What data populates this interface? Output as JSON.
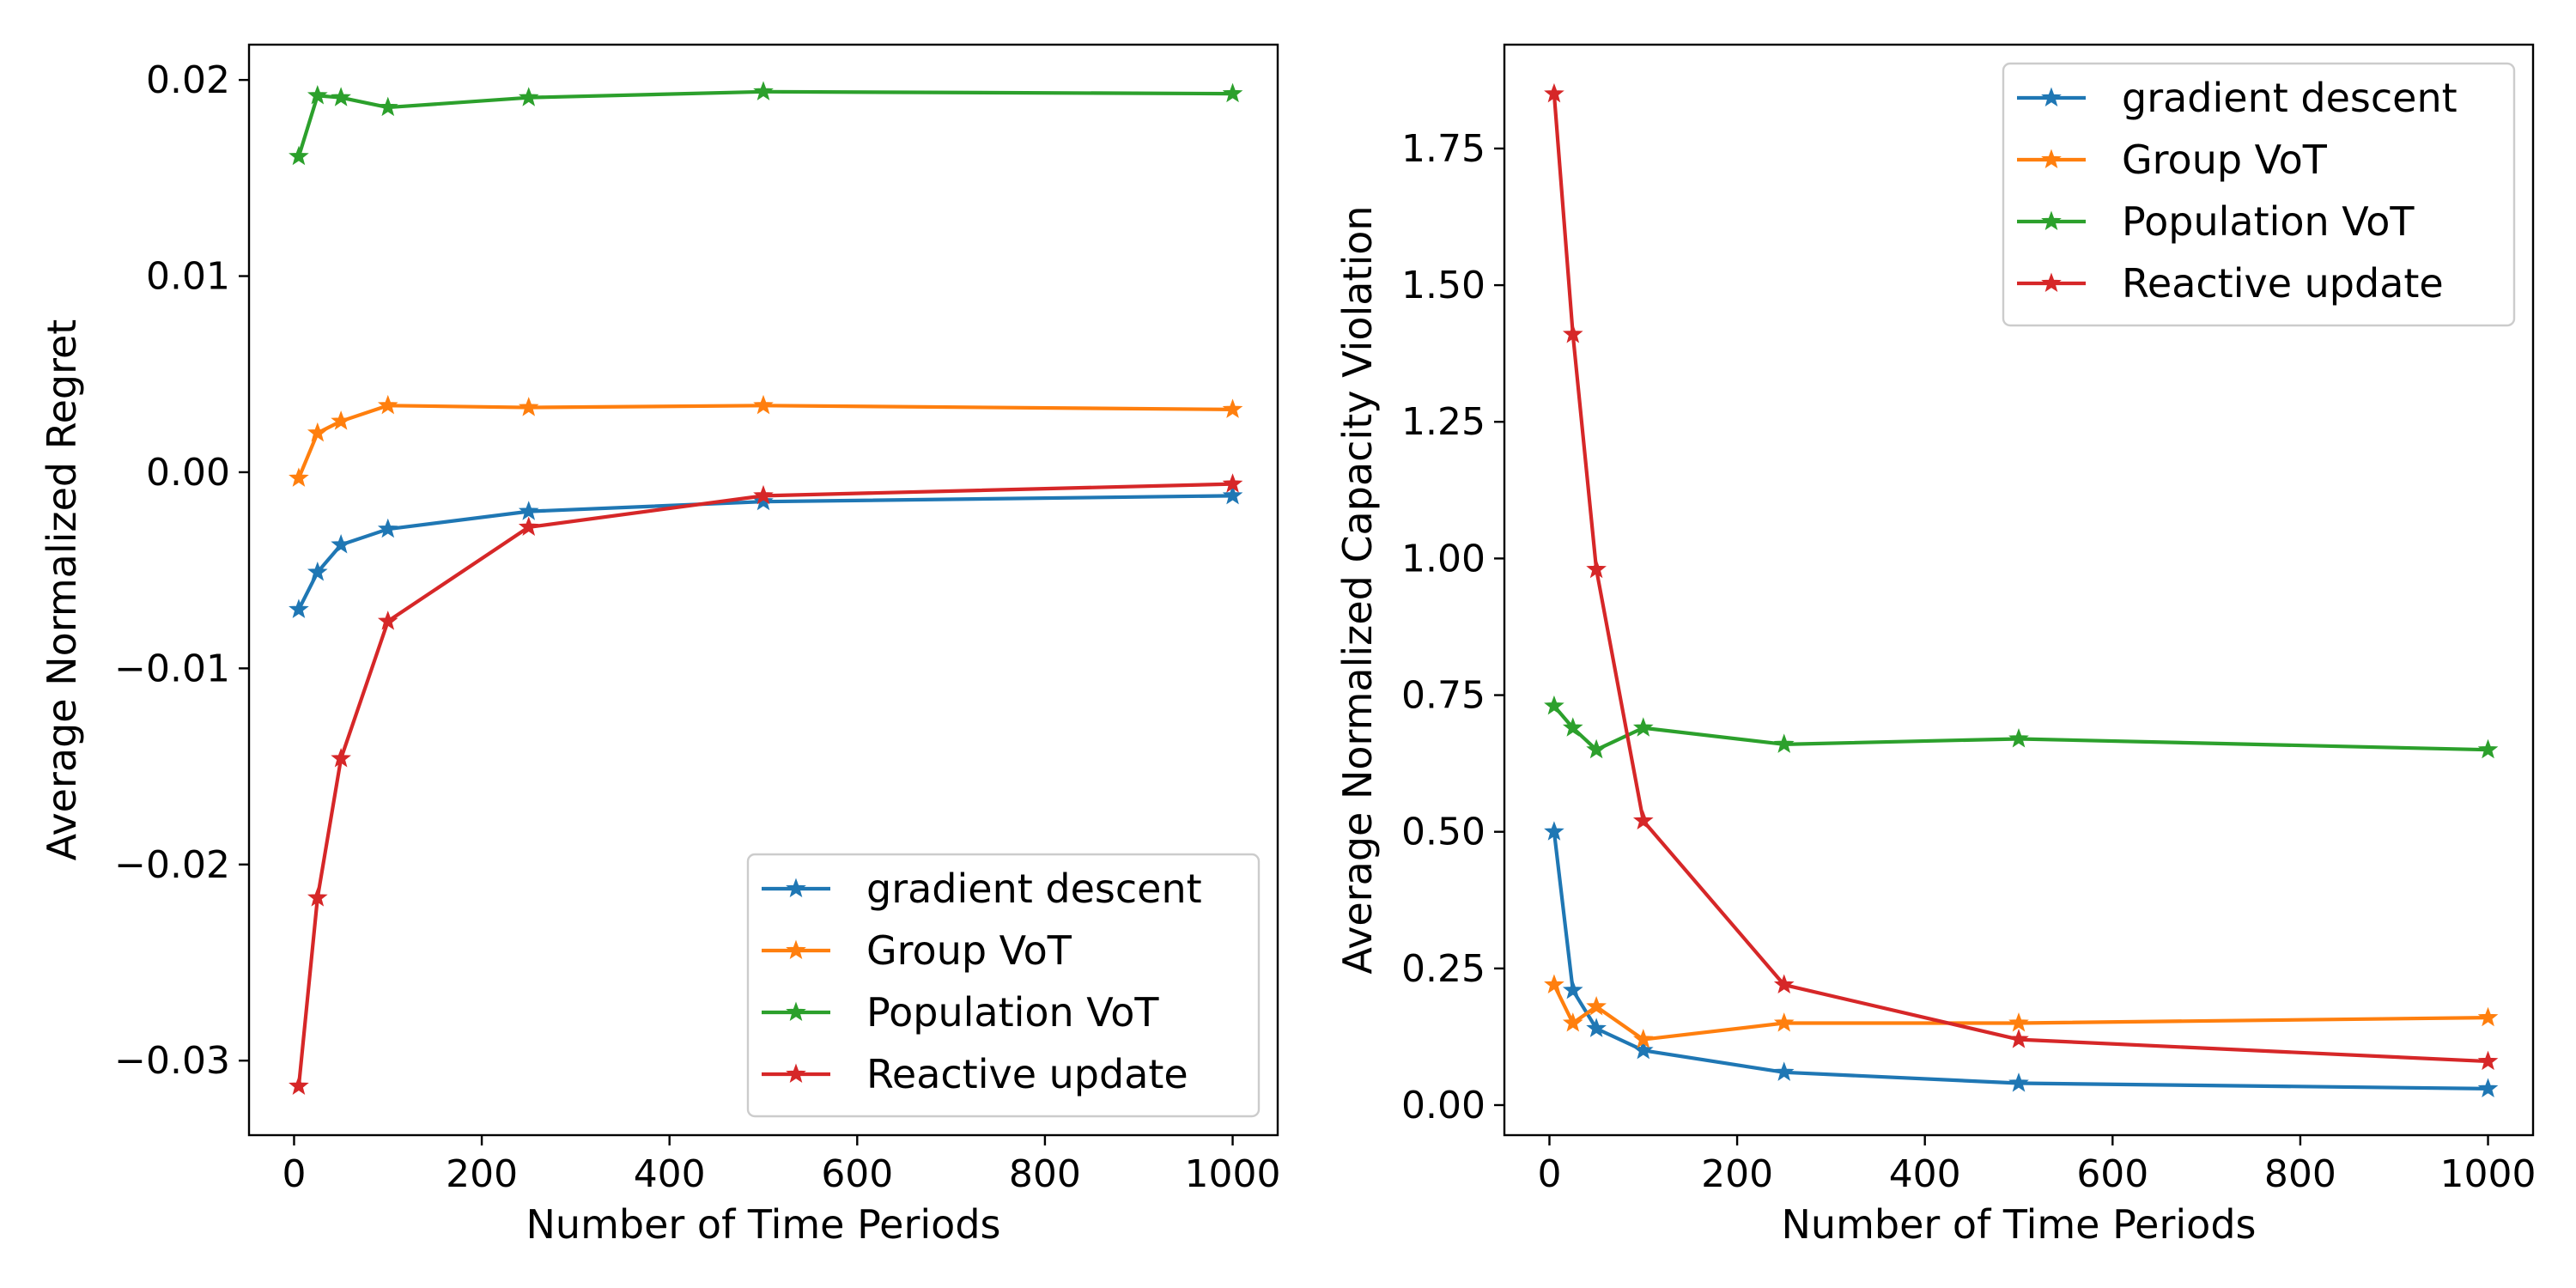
{
  "chart_data": [
    {
      "type": "line",
      "title": "",
      "xlabel": "Number of Time Periods",
      "ylabel": "Average Normalized Regret",
      "xlim": [
        -48,
        1048
      ],
      "ylim": [
        -0.0338,
        0.0218
      ],
      "xticks": [
        0,
        200,
        400,
        600,
        800,
        1000
      ],
      "xtick_labels": [
        "0",
        "200",
        "400",
        "600",
        "800",
        "1000"
      ],
      "yticks": [
        -0.03,
        -0.02,
        -0.01,
        0.0,
        0.01,
        0.02
      ],
      "ytick_labels": [
        "−0.03",
        "−0.02",
        "−0.01",
        "0.00",
        "0.01",
        "0.02"
      ],
      "grid": false,
      "legend_position": "lower-right",
      "x": [
        5,
        25,
        50,
        100,
        250,
        500,
        1000
      ],
      "series": [
        {
          "name": "gradient descent",
          "color": "#1f77b4",
          "marker": "star",
          "values": [
            -0.007,
            -0.0051,
            -0.0037,
            -0.0029,
            -0.002,
            -0.0015,
            -0.0012
          ]
        },
        {
          "name": "Group VoT",
          "color": "#ff7f0e",
          "marker": "star",
          "values": [
            -0.0003,
            0.002,
            0.0026,
            0.0034,
            0.0033,
            0.0034,
            0.0032
          ]
        },
        {
          "name": "Population VoT",
          "color": "#2ca02c",
          "marker": "star",
          "values": [
            0.0161,
            0.0192,
            0.0191,
            0.0186,
            0.0191,
            0.0194,
            0.0193
          ]
        },
        {
          "name": "Reactive update",
          "color": "#d62728",
          "marker": "star",
          "values": [
            -0.0313,
            -0.0217,
            -0.0146,
            -0.0076,
            -0.0028,
            -0.0012,
            -0.0006
          ]
        }
      ]
    },
    {
      "type": "line",
      "title": "",
      "xlabel": "Number of Time Periods",
      "ylabel": "Average Normalized Capacity Violation",
      "xlim": [
        -48,
        1048
      ],
      "ylim": [
        -0.055,
        1.94
      ],
      "xticks": [
        0,
        200,
        400,
        600,
        800,
        1000
      ],
      "xtick_labels": [
        "0",
        "200",
        "400",
        "600",
        "800",
        "1000"
      ],
      "yticks": [
        0.0,
        0.25,
        0.5,
        0.75,
        1.0,
        1.25,
        1.5,
        1.75
      ],
      "ytick_labels": [
        "0.00",
        "0.25",
        "0.50",
        "0.75",
        "1.00",
        "1.25",
        "1.50",
        "1.75"
      ],
      "grid": false,
      "legend_position": "upper-right",
      "x": [
        5,
        25,
        50,
        100,
        250,
        500,
        1000
      ],
      "series": [
        {
          "name": "gradient descent",
          "color": "#1f77b4",
          "marker": "star",
          "values": [
            0.5,
            0.21,
            0.14,
            0.1,
            0.06,
            0.04,
            0.03
          ]
        },
        {
          "name": "Group VoT",
          "color": "#ff7f0e",
          "marker": "star",
          "values": [
            0.22,
            0.15,
            0.18,
            0.12,
            0.15,
            0.15,
            0.16
          ]
        },
        {
          "name": "Population VoT",
          "color": "#2ca02c",
          "marker": "star",
          "values": [
            0.73,
            0.69,
            0.65,
            0.69,
            0.66,
            0.67,
            0.65
          ]
        },
        {
          "name": "Reactive update",
          "color": "#d62728",
          "marker": "star",
          "values": [
            1.85,
            1.41,
            0.98,
            0.52,
            0.22,
            0.12,
            0.08
          ]
        }
      ]
    }
  ]
}
